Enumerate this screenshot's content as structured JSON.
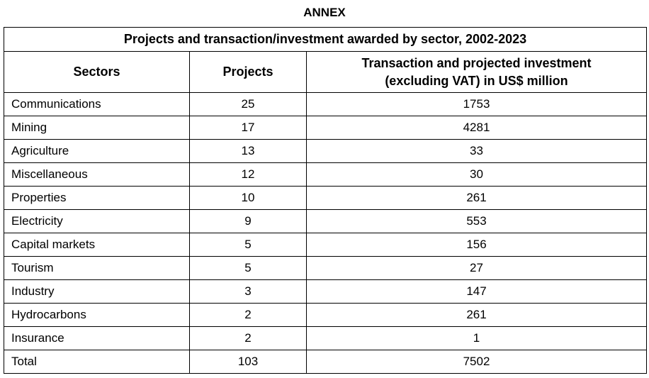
{
  "annex_title": "ANNEX",
  "table": {
    "caption": "Projects and transaction/investment awarded by sector, 2002-2023",
    "headers": {
      "sectors": "Sectors",
      "projects": "Projects",
      "investment_line1": "Transaction and projected investment",
      "investment_line2": "(excluding VAT) in US$ million"
    },
    "rows": [
      {
        "sector": "Communications",
        "projects": "25",
        "investment": "1753"
      },
      {
        "sector": "Mining",
        "projects": "17",
        "investment": "4281"
      },
      {
        "sector": "Agriculture",
        "projects": "13",
        "investment": "33"
      },
      {
        "sector": "Miscellaneous",
        "projects": "12",
        "investment": "30"
      },
      {
        "sector": "Properties",
        "projects": "10",
        "investment": "261"
      },
      {
        "sector": "Electricity",
        "projects": "9",
        "investment": "553"
      },
      {
        "sector": "Capital markets",
        "projects": "5",
        "investment": "156"
      },
      {
        "sector": "Tourism",
        "projects": "5",
        "investment": "27"
      },
      {
        "sector": "Industry",
        "projects": "3",
        "investment": "147"
      },
      {
        "sector": "Hydrocarbons",
        "projects": "2",
        "investment": "261"
      },
      {
        "sector": "Insurance",
        "projects": "2",
        "investment": "1"
      },
      {
        "sector": "Total",
        "projects": "103",
        "investment": "7502"
      }
    ]
  }
}
